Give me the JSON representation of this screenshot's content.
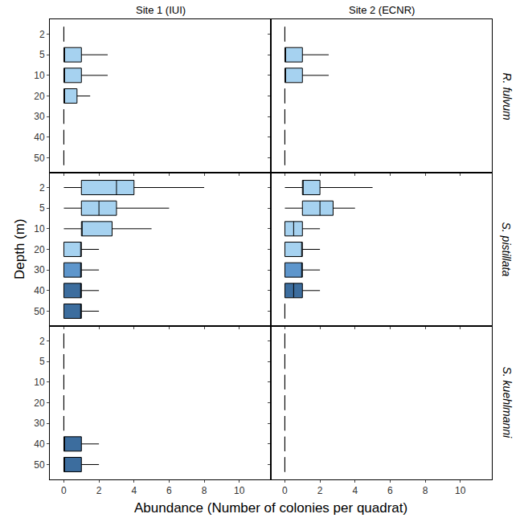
{
  "chart_data": {
    "type": "box",
    "orientation": "horizontal",
    "x_label": "Abundance (Number of colonies per quadrat)",
    "y_label": "Depth (m)",
    "columns": [
      "Site 1 (IUI)",
      "Site 2 (ECNR)"
    ],
    "rows": [
      "R. fulvum",
      "S. pistillata",
      "S. kuehlmanni"
    ],
    "categories": [
      "2",
      "5",
      "10",
      "20",
      "30",
      "40",
      "50"
    ],
    "xlim": [
      -0.8,
      11.8
    ],
    "xticks": [
      0,
      2,
      4,
      6,
      8,
      10
    ],
    "grid": false,
    "panels": [
      {
        "site": "Site 1 (IUI)",
        "species": "R. fulvum",
        "boxes": [
          {
            "depth": "2",
            "lower": 0,
            "q1": 0,
            "median": 0,
            "q3": 0,
            "upper": 0,
            "color": "#a6d2f0"
          },
          {
            "depth": "5",
            "lower": 0,
            "q1": 0,
            "median": 0,
            "q3": 1,
            "upper": 2.5,
            "color": "#a6d2f0"
          },
          {
            "depth": "10",
            "lower": 0,
            "q1": 0,
            "median": 0,
            "q3": 1,
            "upper": 2.5,
            "color": "#a6d2f0"
          },
          {
            "depth": "20",
            "lower": 0,
            "q1": 0,
            "median": 0,
            "q3": 0.75,
            "upper": 1.5,
            "color": "#a6d2f0"
          },
          {
            "depth": "30",
            "lower": 0,
            "q1": 0,
            "median": 0,
            "q3": 0,
            "upper": 0,
            "color": "#a6d2f0"
          },
          {
            "depth": "40",
            "lower": 0,
            "q1": 0,
            "median": 0,
            "q3": 0,
            "upper": 0,
            "color": "#a6d2f0"
          },
          {
            "depth": "50",
            "lower": 0,
            "q1": 0,
            "median": 0,
            "q3": 0,
            "upper": 0,
            "color": "#a6d2f0"
          }
        ]
      },
      {
        "site": "Site 2 (ECNR)",
        "species": "R. fulvum",
        "boxes": [
          {
            "depth": "2",
            "lower": 0,
            "q1": 0,
            "median": 0,
            "q3": 0,
            "upper": 0,
            "color": "#a6d2f0"
          },
          {
            "depth": "5",
            "lower": 0,
            "q1": 0,
            "median": 0,
            "q3": 1,
            "upper": 2.5,
            "color": "#a6d2f0"
          },
          {
            "depth": "10",
            "lower": 0,
            "q1": 0,
            "median": 0,
            "q3": 1,
            "upper": 2.5,
            "color": "#a6d2f0"
          },
          {
            "depth": "20",
            "lower": 0,
            "q1": 0,
            "median": 0,
            "q3": 0,
            "upper": 0,
            "color": "#a6d2f0"
          },
          {
            "depth": "30",
            "lower": 0,
            "q1": 0,
            "median": 0,
            "q3": 0,
            "upper": 0,
            "color": "#a6d2f0"
          },
          {
            "depth": "40",
            "lower": 0,
            "q1": 0,
            "median": 0,
            "q3": 0,
            "upper": 0,
            "color": "#a6d2f0"
          },
          {
            "depth": "50",
            "lower": 0,
            "q1": 0,
            "median": 0,
            "q3": 0,
            "upper": 0,
            "color": "#a6d2f0"
          }
        ]
      },
      {
        "site": "Site 1 (IUI)",
        "species": "S. pistillata",
        "boxes": [
          {
            "depth": "2",
            "lower": 0,
            "q1": 1,
            "median": 3,
            "q3": 4,
            "upper": 8,
            "color": "#a6d2f0"
          },
          {
            "depth": "5",
            "lower": 0,
            "q1": 1,
            "median": 2,
            "q3": 3,
            "upper": 6,
            "color": "#a6d2f0"
          },
          {
            "depth": "10",
            "lower": 0,
            "q1": 1,
            "median": 1,
            "q3": 2.75,
            "upper": 5,
            "color": "#a6d2f0"
          },
          {
            "depth": "20",
            "lower": 0,
            "q1": 0,
            "median": 1,
            "q3": 1,
            "upper": 2,
            "color": "#a6d2f0"
          },
          {
            "depth": "30",
            "lower": 0,
            "q1": 0,
            "median": 1,
            "q3": 1,
            "upper": 2,
            "color": "#5e96cc"
          },
          {
            "depth": "40",
            "lower": 0,
            "q1": 0,
            "median": 1,
            "q3": 1,
            "upper": 2,
            "color": "#3c6d9e"
          },
          {
            "depth": "50",
            "lower": 0,
            "q1": 0,
            "median": 1,
            "q3": 1,
            "upper": 2,
            "color": "#3c6d9e"
          }
        ]
      },
      {
        "site": "Site 2 (ECNR)",
        "species": "S. pistillata",
        "boxes": [
          {
            "depth": "2",
            "lower": 0,
            "q1": 1,
            "median": 1,
            "q3": 2,
            "upper": 5,
            "color": "#a6d2f0"
          },
          {
            "depth": "5",
            "lower": 0,
            "q1": 1,
            "median": 2,
            "q3": 2.75,
            "upper": 4,
            "color": "#a6d2f0"
          },
          {
            "depth": "10",
            "lower": 0,
            "q1": 0,
            "median": 0.5,
            "q3": 1,
            "upper": 2,
            "color": "#a6d2f0"
          },
          {
            "depth": "20",
            "lower": 0,
            "q1": 0,
            "median": 1,
            "q3": 1,
            "upper": 2,
            "color": "#a6d2f0"
          },
          {
            "depth": "30",
            "lower": 0,
            "q1": 0,
            "median": 1,
            "q3": 1,
            "upper": 2,
            "color": "#5e96cc"
          },
          {
            "depth": "40",
            "lower": 0,
            "q1": 0,
            "median": 0.5,
            "q3": 1,
            "upper": 2,
            "color": "#3c6d9e"
          },
          {
            "depth": "50",
            "lower": 0,
            "q1": 0,
            "median": 0,
            "q3": 0,
            "upper": 0,
            "color": "#3c6d9e"
          }
        ]
      },
      {
        "site": "Site 1 (IUI)",
        "species": "S. kuehlmanni",
        "boxes": [
          {
            "depth": "2",
            "lower": 0,
            "q1": 0,
            "median": 0,
            "q3": 0,
            "upper": 0,
            "color": "#3c6d9e"
          },
          {
            "depth": "5",
            "lower": 0,
            "q1": 0,
            "median": 0,
            "q3": 0,
            "upper": 0,
            "color": "#3c6d9e"
          },
          {
            "depth": "10",
            "lower": 0,
            "q1": 0,
            "median": 0,
            "q3": 0,
            "upper": 0,
            "color": "#3c6d9e"
          },
          {
            "depth": "20",
            "lower": 0,
            "q1": 0,
            "median": 0,
            "q3": 0,
            "upper": 0,
            "color": "#3c6d9e"
          },
          {
            "depth": "30",
            "lower": 0,
            "q1": 0,
            "median": 0,
            "q3": 0,
            "upper": 0,
            "color": "#3c6d9e"
          },
          {
            "depth": "40",
            "lower": 0,
            "q1": 0,
            "median": 0,
            "q3": 1,
            "upper": 2,
            "color": "#3c6d9e"
          },
          {
            "depth": "50",
            "lower": 0,
            "q1": 0,
            "median": 0,
            "q3": 1,
            "upper": 2,
            "color": "#3c6d9e"
          }
        ]
      },
      {
        "site": "Site 2 (ECNR)",
        "species": "S. kuehlmanni",
        "boxes": [
          {
            "depth": "2",
            "lower": 0,
            "q1": 0,
            "median": 0,
            "q3": 0,
            "upper": 0,
            "color": "#3c6d9e"
          },
          {
            "depth": "5",
            "lower": 0,
            "q1": 0,
            "median": 0,
            "q3": 0,
            "upper": 0,
            "color": "#3c6d9e"
          },
          {
            "depth": "10",
            "lower": 0,
            "q1": 0,
            "median": 0,
            "q3": 0,
            "upper": 0,
            "color": "#3c6d9e"
          },
          {
            "depth": "20",
            "lower": 0,
            "q1": 0,
            "median": 0,
            "q3": 0,
            "upper": 0,
            "color": "#3c6d9e"
          },
          {
            "depth": "30",
            "lower": 0,
            "q1": 0,
            "median": 0,
            "q3": 0,
            "upper": 0,
            "color": "#3c6d9e"
          },
          {
            "depth": "40",
            "lower": 0,
            "q1": 0,
            "median": 0,
            "q3": 0,
            "upper": 0,
            "color": "#3c6d9e"
          },
          {
            "depth": "50",
            "lower": 0,
            "q1": 0,
            "median": 0,
            "q3": 0,
            "upper": 0,
            "color": "#3c6d9e"
          }
        ]
      }
    ]
  }
}
